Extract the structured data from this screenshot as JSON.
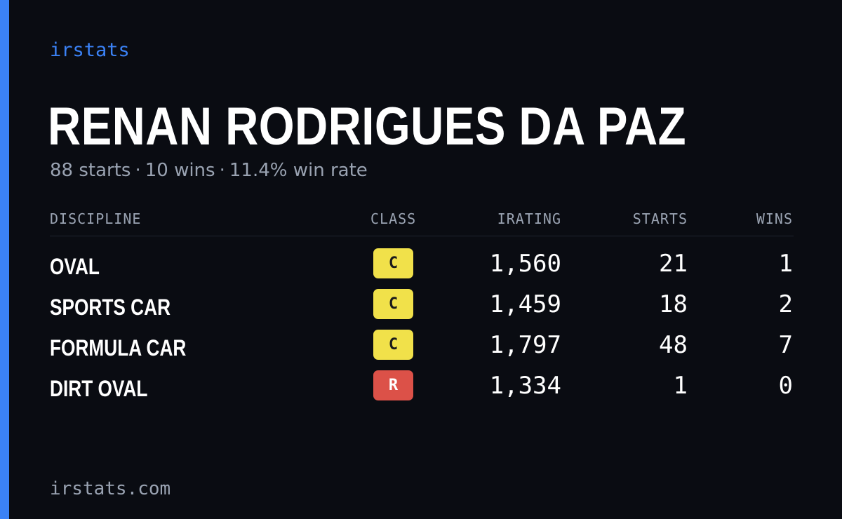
{
  "brand": "irstats",
  "driver": {
    "name": "RENAN RODRIGUES DA PAZ",
    "starts_text": "88 starts",
    "wins_text": "10 wins",
    "win_rate_text": "11.4% win rate",
    "separator": "·"
  },
  "table": {
    "headers": {
      "discipline": "DISCIPLINE",
      "class": "CLASS",
      "irating": "IRATING",
      "starts": "STARTS",
      "wins": "WINS"
    },
    "rows": [
      {
        "discipline": "OVAL",
        "class": "C",
        "class_bg": "#f1e14a",
        "class_fg": "#1b1b1b",
        "irating": "1,560",
        "starts": "21",
        "wins": "1"
      },
      {
        "discipline": "SPORTS CAR",
        "class": "C",
        "class_bg": "#f1e14a",
        "class_fg": "#1b1b1b",
        "irating": "1,459",
        "starts": "18",
        "wins": "2"
      },
      {
        "discipline": "FORMULA CAR",
        "class": "C",
        "class_bg": "#f1e14a",
        "class_fg": "#1b1b1b",
        "irating": "1,797",
        "starts": "48",
        "wins": "7"
      },
      {
        "discipline": "DIRT OVAL",
        "class": "R",
        "class_bg": "#dc5148",
        "class_fg": "#ffffff",
        "irating": "1,334",
        "starts": "1",
        "wins": "0"
      }
    ]
  },
  "footer": "irstats.com",
  "colors": {
    "accent": "#3b82f6",
    "background": "#0a0c12",
    "muted": "#9aa3b2"
  }
}
